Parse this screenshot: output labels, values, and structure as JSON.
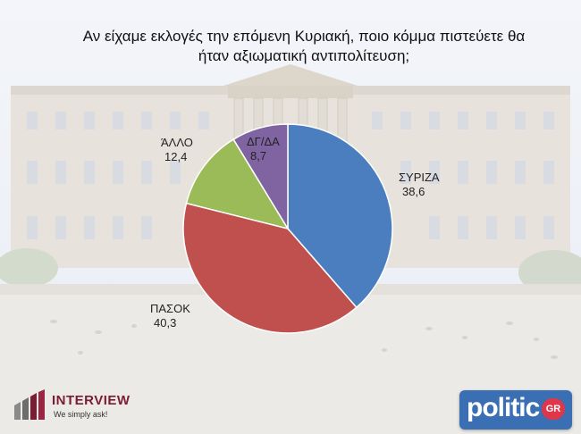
{
  "title": "Αν είχαμε εκλογές την επόμενη Κυριακή, ποιο κόμμα πιστεύετε θα ήταν αξιωματική αντιπολίτευση;",
  "title_line1": "Αν είχαμε εκλογές την επόμενη Κυριακή, ποιο κόμμα πιστεύετε θα",
  "title_line2": "ήταν αξιωματική αντιπολίτευση;",
  "chart_data": {
    "type": "pie",
    "title": "Αν είχαμε εκλογές την επόμενη Κυριακή, ποιο κόμμα πιστεύετε θα ήταν αξιωματική αντιπολίτευση;",
    "categories": [
      "ΣΥΡΙΖΑ",
      "ΠΑΣΟΚ",
      "ΆΛΛΟ",
      "ΔΓ/ΔΑ"
    ],
    "values": [
      38.6,
      40.3,
      12.4,
      8.7
    ],
    "value_labels": [
      "38,6",
      "40,3",
      "12,4",
      "8,7"
    ],
    "colors": [
      "#4a7ebf",
      "#c0504d",
      "#9bbb59",
      "#8064a2"
    ],
    "start": "12 o'clock, clockwise"
  },
  "logos": {
    "left_brand": "INTERVIEW",
    "left_tagline": "We simply ask!",
    "right_brand": "politic",
    "right_suffix": "GR"
  }
}
